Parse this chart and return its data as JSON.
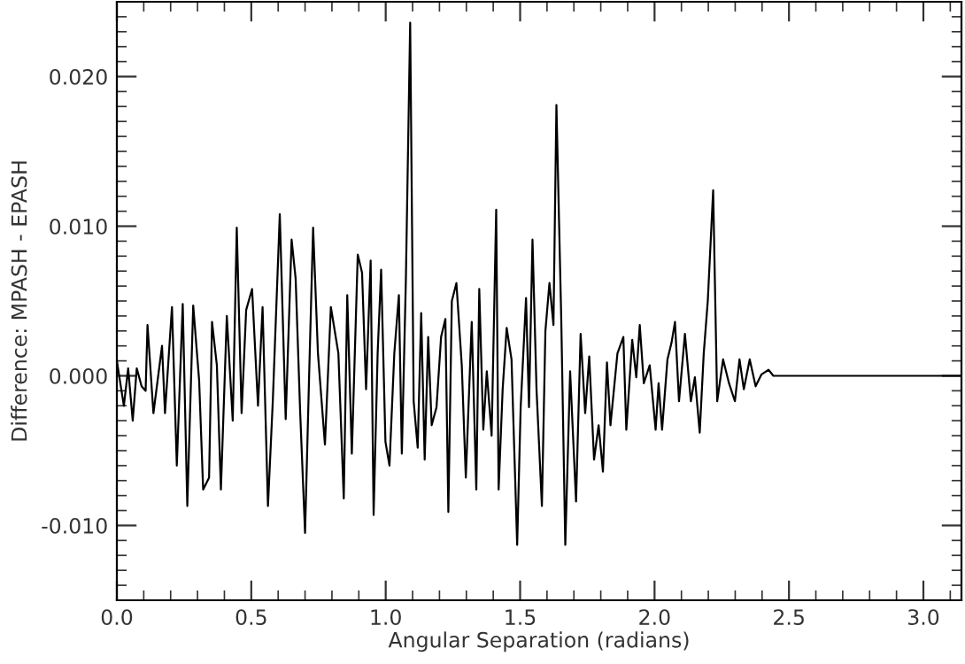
{
  "chart_data": {
    "type": "line",
    "xlabel": "Angular Separation (radians)",
    "ylabel": "Difference: MPASH - EPASH",
    "xlim": [
      0,
      3.1416
    ],
    "ylim": [
      -0.015,
      0.025
    ],
    "xticks": [
      {
        "value": 0,
        "label": "0.0"
      },
      {
        "value": 0.5,
        "label": "0.5"
      },
      {
        "value": 1,
        "label": "1.0"
      },
      {
        "value": 1.5,
        "label": "1.5"
      },
      {
        "value": 2,
        "label": "2.0"
      },
      {
        "value": 2.5,
        "label": "2.5"
      },
      {
        "value": 3,
        "label": "3.0"
      }
    ],
    "yticks": [
      {
        "value": -0.01,
        "label": "-0.010"
      },
      {
        "value": 0,
        "label": "0.000"
      },
      {
        "value": 0.01,
        "label": "0.010"
      },
      {
        "value": 0.02,
        "label": "0.020"
      }
    ],
    "grid": false,
    "marker": "none",
    "line_style": "solid",
    "series": [
      {
        "color": "#000000",
        "x": [
          0.0,
          0.026,
          0.042,
          0.059,
          0.074,
          0.092,
          0.107,
          0.114,
          0.136,
          0.168,
          0.179,
          0.205,
          0.223,
          0.245,
          0.262,
          0.284,
          0.306,
          0.321,
          0.343,
          0.354,
          0.372,
          0.387,
          0.409,
          0.431,
          0.446,
          0.464,
          0.481,
          0.503,
          0.525,
          0.542,
          0.562,
          0.58,
          0.606,
          0.628,
          0.65,
          0.665,
          0.682,
          0.7,
          0.715,
          0.73,
          0.748,
          0.774,
          0.796,
          0.824,
          0.844,
          0.857,
          0.874,
          0.896,
          0.912,
          0.927,
          0.944,
          0.955,
          0.97,
          0.983,
          0.999,
          1.014,
          1.032,
          1.049,
          1.06,
          1.075,
          1.091,
          1.104,
          1.119,
          1.132,
          1.145,
          1.158,
          1.171,
          1.189,
          1.206,
          1.222,
          1.233,
          1.246,
          1.263,
          1.283,
          1.298,
          1.32,
          1.337,
          1.348,
          1.363,
          1.376,
          1.394,
          1.411,
          1.42,
          1.435,
          1.45,
          1.468,
          1.489,
          1.502,
          1.522,
          1.533,
          1.546,
          1.561,
          1.581,
          1.594,
          1.609,
          1.624,
          1.635,
          1.653,
          1.668,
          1.686,
          1.708,
          1.725,
          1.742,
          1.757,
          1.775,
          1.792,
          1.808,
          1.823,
          1.836,
          1.862,
          1.884,
          1.895,
          1.917,
          1.932,
          1.945,
          1.96,
          1.982,
          2.004,
          2.015,
          2.028,
          2.048,
          2.063,
          2.076,
          2.091,
          2.113,
          2.135,
          2.15,
          2.168,
          2.183,
          2.198,
          2.218,
          2.233,
          2.255,
          2.277,
          2.299,
          2.316,
          2.332,
          2.354,
          2.376,
          2.398,
          2.424,
          2.442,
          3.1416
        ],
        "values": [
          0.001,
          -0.002,
          0.0005,
          -0.003,
          0.0005,
          -0.0007,
          -0.001,
          0.0034,
          -0.0025,
          0.002,
          -0.0025,
          0.0046,
          -0.006,
          0.0048,
          -0.0087,
          0.0047,
          -0.0003,
          -0.0076,
          -0.0068,
          0.0036,
          0.0007,
          -0.0076,
          0.004,
          -0.003,
          0.0099,
          -0.0025,
          0.0044,
          0.0058,
          -0.002,
          0.0046,
          -0.0087,
          -0.0017,
          0.0108,
          -0.0029,
          0.0091,
          0.0065,
          -0.0025,
          -0.0105,
          -0.0001,
          0.0099,
          0.0015,
          -0.0046,
          0.0046,
          0.0015,
          -0.0082,
          0.0054,
          -0.0052,
          0.0081,
          0.0069,
          -0.0009,
          0.0077,
          -0.0093,
          0.0015,
          0.0071,
          -0.0044,
          -0.006,
          0.0015,
          0.0054,
          -0.0052,
          0.0064,
          0.0236,
          -0.0017,
          -0.0048,
          0.0042,
          -0.0056,
          0.0026,
          -0.0033,
          -0.0021,
          0.0026,
          0.0038,
          -0.0091,
          0.005,
          0.0062,
          0.0007,
          -0.0068,
          0.0036,
          -0.0076,
          0.0058,
          -0.0036,
          0.0003,
          -0.004,
          0.0111,
          -0.0076,
          -0.0009,
          0.0032,
          0.0011,
          -0.0113,
          -0.0021,
          0.0052,
          -0.0021,
          0.0091,
          -0.0009,
          -0.0087,
          0.003,
          0.0062,
          0.0034,
          0.0181,
          0.0038,
          -0.0113,
          0.0003,
          -0.0084,
          0.0028,
          -0.0025,
          0.0013,
          -0.0056,
          -0.0033,
          -0.0064,
          0.0009,
          -0.0033,
          0.0015,
          0.0026,
          -0.0036,
          0.0024,
          -0.0001,
          0.0034,
          -0.0005,
          0.0007,
          -0.0036,
          -0.0005,
          -0.0036,
          0.0011,
          0.0022,
          0.0036,
          -0.0017,
          0.0028,
          -0.0017,
          -0.0001,
          -0.0038,
          0.0015,
          0.005,
          0.0124,
          -0.0017,
          0.0011,
          -0.0005,
          -0.0017,
          0.0011,
          -0.0009,
          0.0011,
          -0.0007,
          0.0001,
          0.0004,
          0.0,
          0.0
        ]
      }
    ]
  }
}
